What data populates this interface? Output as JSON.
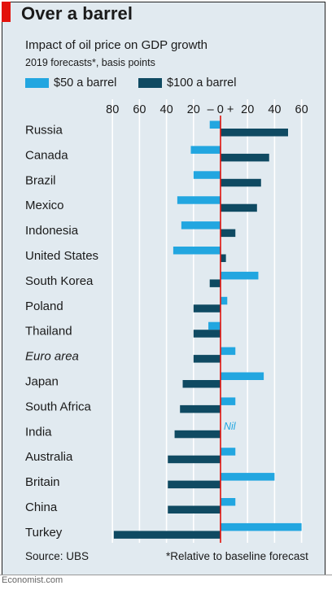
{
  "title": "Over a barrel",
  "subtitle": "Impact of oil price on GDP growth",
  "note": "2019 forecasts*, basis points",
  "source": "Source: UBS",
  "footnote": "*Relative to baseline forecast",
  "credit": "Economist.com",
  "nil_label": "Nil",
  "colors": {
    "brand_red": "#e3120b",
    "series_50": "#22a6e0",
    "series_100": "#0f4a62",
    "background": "#e1eaf0"
  },
  "chart_data": {
    "type": "bar",
    "orientation": "horizontal",
    "categories": [
      "Russia",
      "Canada",
      "Brazil",
      "Mexico",
      "Indonesia",
      "United States",
      "South Korea",
      "Poland",
      "Thailand",
      "Euro area",
      "Japan",
      "South Africa",
      "India",
      "Australia",
      "Britain",
      "China",
      "Turkey"
    ],
    "italic_categories": [
      "Euro area"
    ],
    "series": [
      {
        "name": "$50 a barrel",
        "color": "#22a6e0",
        "values": [
          -8,
          -22,
          -20,
          -32,
          -29,
          -35,
          28,
          5,
          -9,
          11,
          32,
          11,
          null,
          11,
          40,
          11,
          60
        ]
      },
      {
        "name": "$100 a barrel",
        "color": "#0f4a62",
        "values": [
          50,
          36,
          30,
          27,
          11,
          4,
          -8,
          -20,
          -20,
          -20,
          -28,
          -30,
          -34,
          -39,
          -39,
          -39,
          -79
        ]
      }
    ],
    "xlim": [
      -80,
      60
    ],
    "x_ticks": [
      -80,
      -60,
      -40,
      -20,
      0,
      20,
      40,
      60
    ],
    "x_tick_labels": [
      "80",
      "60",
      "40",
      "20",
      "– 0 +",
      "20",
      "40",
      "60"
    ],
    "legend": "top",
    "grid": true
  }
}
